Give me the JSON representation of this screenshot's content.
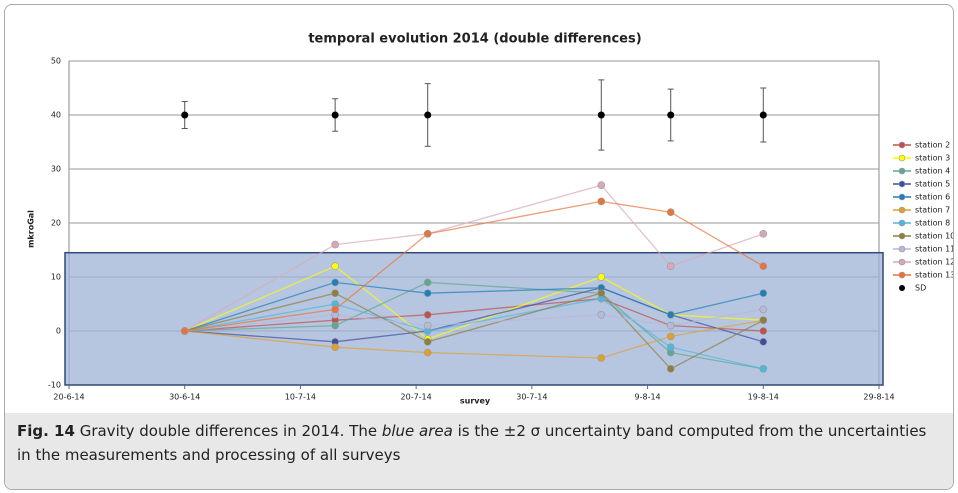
{
  "chart_data": {
    "type": "line",
    "title": "temporal evolution 2014 (double differences)",
    "x_label": "survey",
    "y_label": "mkroGal",
    "x": [
      "30-6-14",
      "13-7-14",
      "21-7-14",
      "5-8-14",
      "11-8-14",
      "19-8-14"
    ],
    "xlim": [
      "20-6-14",
      "29-8-14"
    ],
    "xticks": [
      "20-6-14",
      "30-6-14",
      "10-7-14",
      "20-7-14",
      "30-7-14",
      "9-8-14",
      "19-8-14",
      "29-8-14"
    ],
    "ylim": [
      -10,
      50
    ],
    "yticks": [
      -10,
      0,
      10,
      20,
      30,
      40,
      50
    ],
    "grid": true,
    "band": [
      -10,
      14.5
    ],
    "band_color": "#9fb3d6",
    "legend": "right",
    "series": [
      {
        "name": "station 2",
        "color": "#c0504d",
        "values": [
          0,
          2,
          3,
          6,
          1,
          0
        ]
      },
      {
        "name": "station 3",
        "color": "#ffff00",
        "values": [
          0,
          12,
          -1.5,
          10,
          3,
          2
        ]
      },
      {
        "name": "station 4",
        "color": "#5fa88f",
        "values": [
          0,
          1,
          9,
          7,
          -4,
          -7
        ]
      },
      {
        "name": "station 5",
        "color": "#3d4fa0",
        "values": [
          0,
          -2,
          0,
          8,
          3,
          -2
        ]
      },
      {
        "name": "station 6",
        "color": "#1f7fb8",
        "values": [
          0,
          9,
          7,
          8,
          3,
          7
        ]
      },
      {
        "name": "station 7",
        "color": "#e0a030",
        "values": [
          0,
          -3,
          -4,
          -5,
          -1,
          2
        ]
      },
      {
        "name": "station 8",
        "color": "#4bb8e0",
        "values": [
          0,
          5,
          0,
          6,
          -3,
          -7
        ]
      },
      {
        "name": "station 10",
        "color": "#8c7f40",
        "values": [
          0,
          7,
          -2,
          7,
          -7,
          2
        ]
      },
      {
        "name": "station 11",
        "color": "#b8b8d8",
        "values": [
          0,
          3,
          1,
          3,
          1,
          4
        ]
      },
      {
        "name": "station 12",
        "color": "#d8a8b8",
        "values": [
          0,
          16,
          18,
          27,
          12,
          18
        ]
      },
      {
        "name": "station 13",
        "color": "#e8743b",
        "values": [
          0,
          4,
          18,
          24,
          22,
          12
        ]
      },
      {
        "name": "SD",
        "color": "#000000",
        "values": [
          40,
          40,
          40,
          40,
          40,
          40
        ],
        "errors": [
          2.5,
          3,
          5.8,
          6.5,
          4.8,
          5
        ]
      }
    ]
  },
  "caption": {
    "label": "Fig. 14",
    "text_before": "Gravity double differences in 2014. The ",
    "emphasis": "blue area",
    "text_after": " is the ±2 σ uncertainty band computed from the uncertainties in the measurements and processing of all surveys"
  }
}
